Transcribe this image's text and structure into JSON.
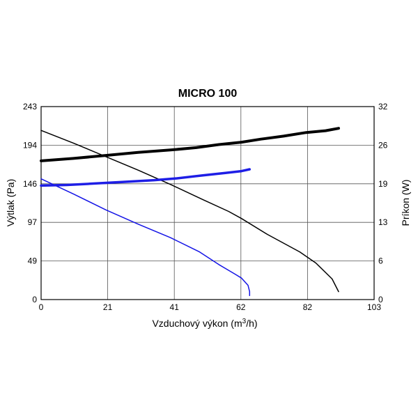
{
  "chart_data": {
    "type": "line",
    "title": "MICRO 100",
    "xlabel_main": "Vzduchový výkon (m",
    "xlabel_sup": "3",
    "xlabel_end": "/h)",
    "ylabel": "Výtlak (Pa)",
    "y2label": "Príkon (W)",
    "x_ticks": [
      "0",
      "21",
      "41",
      "62",
      "82",
      "103"
    ],
    "y_ticks": [
      "0",
      "49",
      "97",
      "146",
      "194",
      "243"
    ],
    "y2_ticks": [
      "0",
      "6",
      "13",
      "19",
      "26",
      "32"
    ],
    "xlim": [
      0,
      103
    ],
    "ylim": [
      0,
      243
    ],
    "y2lim": [
      0,
      32
    ],
    "grid": true,
    "series": [
      {
        "axis": "left",
        "color": "#000000",
        "width": 1.5,
        "points": [
          [
            0,
            213
          ],
          [
            10,
            197
          ],
          [
            20,
            180
          ],
          [
            30,
            163
          ],
          [
            40,
            145
          ],
          [
            50,
            126
          ],
          [
            58,
            111
          ],
          [
            62,
            102
          ],
          [
            70,
            82
          ],
          [
            80,
            60
          ],
          [
            85,
            46
          ],
          [
            90,
            26
          ],
          [
            92,
            10
          ]
        ]
      },
      {
        "axis": "left",
        "color": "#1414e6",
        "width": 1.5,
        "points": [
          [
            0,
            152
          ],
          [
            10,
            133
          ],
          [
            20,
            113
          ],
          [
            30,
            95
          ],
          [
            40,
            78
          ],
          [
            49,
            60
          ],
          [
            55,
            44
          ],
          [
            60,
            32
          ],
          [
            62,
            27
          ],
          [
            64,
            18
          ],
          [
            64.5,
            10
          ],
          [
            64.5,
            5
          ]
        ]
      },
      {
        "axis": "right",
        "color": "#000000",
        "width": 4,
        "points": [
          [
            0,
            23
          ],
          [
            10,
            23.4
          ],
          [
            20,
            23.9
          ],
          [
            30,
            24.4
          ],
          [
            40,
            24.8
          ],
          [
            48,
            25.2
          ],
          [
            55,
            25.7
          ],
          [
            62,
            26.1
          ],
          [
            68,
            26.6
          ],
          [
            75,
            27.1
          ],
          [
            82,
            27.7
          ],
          [
            88,
            28
          ],
          [
            92,
            28.4
          ]
        ]
      },
      {
        "axis": "right",
        "color": "#1e1ee6",
        "width": 3.5,
        "points": [
          [
            0,
            18.9
          ],
          [
            8,
            19
          ],
          [
            15,
            19.2
          ],
          [
            25,
            19.5
          ],
          [
            35,
            19.8
          ],
          [
            42,
            20.1
          ],
          [
            50,
            20.6
          ],
          [
            57,
            21
          ],
          [
            62,
            21.3
          ],
          [
            64.5,
            21.6
          ]
        ]
      }
    ]
  }
}
